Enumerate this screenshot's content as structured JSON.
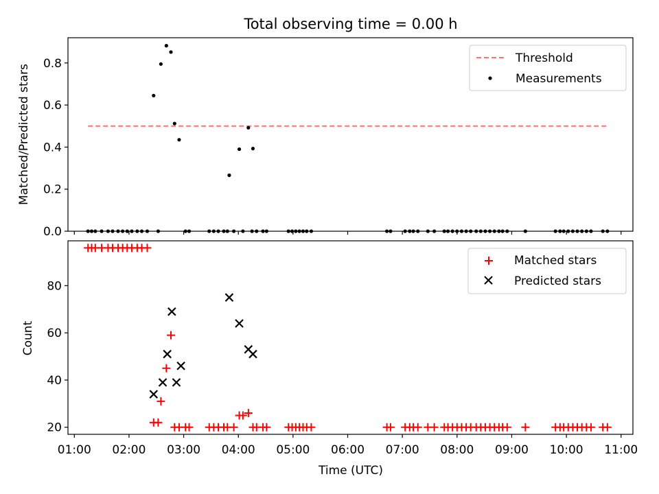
{
  "title": "Total observing time = 0.00 h",
  "chart_data": [
    {
      "type": "scatter",
      "panel": "top",
      "title": "Total observing time = 0.00 h",
      "ylabel": "Matched/Predicted stars",
      "xlabel": "",
      "ylim": [
        0,
        0.92
      ],
      "yticks": [
        "0.0",
        "0.2",
        "0.4",
        "0.6",
        "0.8"
      ],
      "legend_position": "top-right",
      "threshold": {
        "name": "Threshold",
        "value": 0.5,
        "x_range": [
          "01:15",
          "10:45"
        ],
        "color": "#ff7070"
      },
      "series": [
        {
          "name": "Measurements",
          "color": "#000000",
          "points": [
            [
              "02:27",
              0.645
            ],
            [
              "02:35",
              0.795
            ],
            [
              "02:41",
              0.882
            ],
            [
              "02:46",
              0.852
            ],
            [
              "02:50",
              0.512
            ],
            [
              "02:55",
              0.435
            ],
            [
              "03:50",
              0.266
            ],
            [
              "04:01",
              0.39
            ],
            [
              "04:11",
              0.492
            ],
            [
              "04:16",
              0.393
            ]
          ],
          "zero_times": [
            "01:15",
            "01:19",
            "01:23",
            "01:30",
            "01:37",
            "01:42",
            "01:48",
            "01:53",
            "01:58",
            "02:03",
            "02:09",
            "02:14",
            "02:20",
            "02:32",
            "03:02",
            "03:06",
            "03:28",
            "03:33",
            "03:38",
            "03:44",
            "03:48",
            "03:55",
            "04:05",
            "04:15",
            "04:20",
            "04:27",
            "04:31",
            "04:55",
            "04:59",
            "05:03",
            "05:07",
            "05:11",
            "05:15",
            "05:20",
            "06:43",
            "06:47",
            "07:03",
            "07:08",
            "07:12",
            "07:17",
            "07:28",
            "07:35",
            "07:46",
            "07:50",
            "07:55",
            "08:00",
            "08:05",
            "08:10",
            "08:15",
            "08:21",
            "08:26",
            "08:31",
            "08:36",
            "08:41",
            "08:46",
            "08:50",
            "08:55",
            "09:15",
            "09:48",
            "09:53",
            "09:57",
            "10:02",
            "10:07",
            "10:12",
            "10:17",
            "10:22",
            "10:27",
            "10:40",
            "10:45"
          ]
        }
      ]
    },
    {
      "type": "scatter",
      "panel": "bottom",
      "xlabel": "Time (UTC)",
      "ylabel": "Count",
      "ylim": [
        17,
        99
      ],
      "yticks": [
        "20",
        "40",
        "60",
        "80"
      ],
      "xticks": [
        "01:00",
        "02:00",
        "03:00",
        "04:00",
        "05:00",
        "06:00",
        "07:00",
        "08:00",
        "09:00",
        "10:00",
        "11:00"
      ],
      "xlim": [
        "00:53",
        "11:13"
      ],
      "legend_position": "top-right",
      "series": [
        {
          "name": "Matched stars",
          "color": "#ff0000",
          "marker": "plus",
          "points": [
            [
              "01:15",
              96
            ],
            [
              "01:19",
              96
            ],
            [
              "01:23",
              96
            ],
            [
              "01:30",
              96
            ],
            [
              "01:37",
              96
            ],
            [
              "01:42",
              96
            ],
            [
              "01:48",
              96
            ],
            [
              "01:53",
              96
            ],
            [
              "01:58",
              96
            ],
            [
              "02:03",
              96
            ],
            [
              "02:09",
              96
            ],
            [
              "02:14",
              96
            ],
            [
              "02:20",
              96
            ],
            [
              "02:27",
              22
            ],
            [
              "02:32",
              22
            ],
            [
              "02:35",
              31
            ],
            [
              "02:41",
              45
            ],
            [
              "02:46",
              59
            ],
            [
              "02:50",
              20
            ],
            [
              "02:55",
              20
            ],
            [
              "03:02",
              20
            ],
            [
              "03:06",
              20
            ],
            [
              "03:28",
              20
            ],
            [
              "03:33",
              20
            ],
            [
              "03:38",
              20
            ],
            [
              "03:44",
              20
            ],
            [
              "03:48",
              20
            ],
            [
              "03:55",
              20
            ],
            [
              "04:01",
              25
            ],
            [
              "04:05",
              25
            ],
            [
              "04:11",
              26
            ],
            [
              "04:16",
              20
            ],
            [
              "04:20",
              20
            ],
            [
              "04:27",
              20
            ],
            [
              "04:31",
              20
            ],
            [
              "04:55",
              20
            ],
            [
              "04:59",
              20
            ],
            [
              "05:03",
              20
            ],
            [
              "05:07",
              20
            ],
            [
              "05:11",
              20
            ],
            [
              "05:15",
              20
            ],
            [
              "05:20",
              20
            ],
            [
              "06:43",
              20
            ],
            [
              "06:47",
              20
            ],
            [
              "07:03",
              20
            ],
            [
              "07:08",
              20
            ],
            [
              "07:12",
              20
            ],
            [
              "07:17",
              20
            ],
            [
              "07:28",
              20
            ],
            [
              "07:35",
              20
            ],
            [
              "07:46",
              20
            ],
            [
              "07:50",
              20
            ],
            [
              "07:55",
              20
            ],
            [
              "08:00",
              20
            ],
            [
              "08:05",
              20
            ],
            [
              "08:10",
              20
            ],
            [
              "08:15",
              20
            ],
            [
              "08:21",
              20
            ],
            [
              "08:26",
              20
            ],
            [
              "08:31",
              20
            ],
            [
              "08:36",
              20
            ],
            [
              "08:41",
              20
            ],
            [
              "08:46",
              20
            ],
            [
              "08:50",
              20
            ],
            [
              "08:55",
              20
            ],
            [
              "09:15",
              20
            ],
            [
              "09:48",
              20
            ],
            [
              "09:53",
              20
            ],
            [
              "09:57",
              20
            ],
            [
              "10:02",
              20
            ],
            [
              "10:07",
              20
            ],
            [
              "10:12",
              20
            ],
            [
              "10:17",
              20
            ],
            [
              "10:22",
              20
            ],
            [
              "10:27",
              20
            ],
            [
              "10:40",
              20
            ],
            [
              "10:45",
              20
            ]
          ]
        },
        {
          "name": "Predicted stars",
          "color": "#000000",
          "marker": "x",
          "points": [
            [
              "02:27",
              34
            ],
            [
              "02:37",
              39
            ],
            [
              "02:42",
              51
            ],
            [
              "02:47",
              69
            ],
            [
              "02:52",
              39
            ],
            [
              "02:57",
              46
            ],
            [
              "03:50",
              75
            ],
            [
              "04:01",
              64
            ],
            [
              "04:11",
              53
            ],
            [
              "04:16",
              51
            ]
          ]
        }
      ]
    }
  ]
}
